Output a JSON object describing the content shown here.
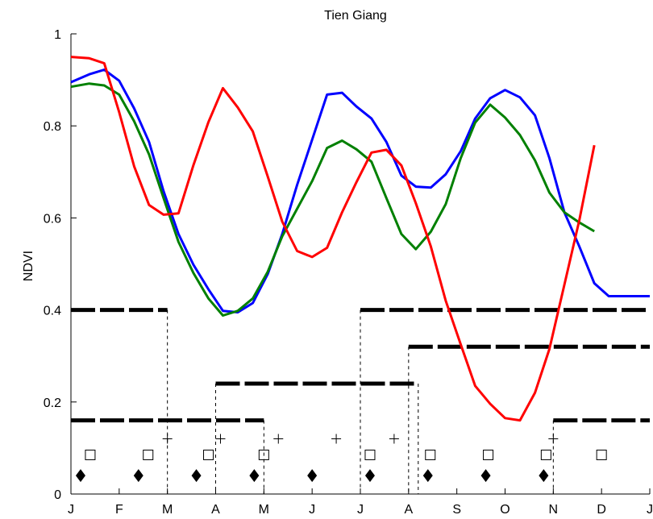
{
  "chart_data": {
    "type": "line",
    "title": "Tien Giang",
    "xlabel": "",
    "ylabel": "NDVI",
    "ylim": [
      0,
      1
    ],
    "xlim": [
      0,
      12
    ],
    "grid": false,
    "x_tick_labels": [
      "J",
      "F",
      "M",
      "A",
      "M",
      "J",
      "J",
      "A",
      "S",
      "O",
      "N",
      "D",
      "J"
    ],
    "y_tick_labels": [
      "0",
      "0.2",
      "0.4",
      "0.6",
      "0.8",
      "1"
    ],
    "y_ticks": [
      0,
      0.2,
      0.4,
      0.6,
      0.8,
      1.0
    ],
    "series": [
      {
        "color": "#0000ff",
        "x": [
          0,
          0.38,
          0.69,
          1.0,
          1.31,
          1.62,
          1.92,
          2.23,
          2.54,
          2.85,
          3.15,
          3.46,
          3.77,
          4.08,
          4.38,
          4.69,
          5.0,
          5.31,
          5.62,
          5.92,
          6.23,
          6.54,
          6.85,
          7.15,
          7.46,
          7.77,
          8.08,
          8.38,
          8.69,
          9.0,
          9.31,
          9.62,
          9.92,
          10.23,
          10.54,
          10.85,
          11.15,
          11.46,
          11.77,
          12.08,
          12.5
        ],
        "y": [
          0.895,
          0.912,
          0.922,
          0.898,
          0.838,
          0.765,
          0.658,
          0.565,
          0.498,
          0.445,
          0.398,
          0.395,
          0.415,
          0.478,
          0.565,
          0.672,
          0.77,
          0.868,
          0.872,
          0.842,
          0.816,
          0.765,
          0.692,
          0.668,
          0.666,
          0.695,
          0.745,
          0.816,
          0.86,
          0.878,
          0.862,
          0.823,
          0.73,
          0.612,
          0.538,
          0.458,
          0.43,
          0.43,
          0.43,
          0.43,
          0.43
        ]
      },
      {
        "color": "#008000",
        "x": [
          0,
          0.38,
          0.69,
          1.0,
          1.31,
          1.62,
          1.92,
          2.23,
          2.54,
          2.85,
          3.15,
          3.46,
          3.77,
          4.08,
          4.38,
          4.69,
          5.0,
          5.31,
          5.62,
          5.92,
          6.23,
          6.54,
          6.85,
          7.15,
          7.46,
          7.77,
          8.08,
          8.38,
          8.69,
          9.0,
          9.31,
          9.62,
          9.92,
          10.23,
          10.54,
          10.85
        ],
        "y": [
          0.885,
          0.892,
          0.888,
          0.868,
          0.81,
          0.738,
          0.643,
          0.548,
          0.48,
          0.425,
          0.388,
          0.398,
          0.425,
          0.483,
          0.56,
          0.62,
          0.68,
          0.752,
          0.768,
          0.749,
          0.722,
          0.643,
          0.565,
          0.532,
          0.57,
          0.63,
          0.73,
          0.807,
          0.846,
          0.818,
          0.78,
          0.725,
          0.655,
          0.612,
          0.59,
          0.571
        ]
      },
      {
        "color": "#ff0000",
        "x": [
          0,
          0.38,
          0.69,
          1.0,
          1.31,
          1.62,
          1.92,
          2.23,
          2.54,
          2.85,
          3.15,
          3.46,
          3.77,
          4.08,
          4.38,
          4.69,
          5.0,
          5.31,
          5.62,
          5.92,
          6.23,
          6.54,
          6.85,
          7.15,
          7.46,
          7.77,
          8.08,
          8.38,
          8.69,
          9.0,
          9.31,
          9.62,
          9.92,
          10.23,
          10.54,
          10.85
        ],
        "y": [
          0.95,
          0.947,
          0.936,
          0.83,
          0.712,
          0.628,
          0.607,
          0.61,
          0.715,
          0.808,
          0.882,
          0.84,
          0.788,
          0.69,
          0.592,
          0.528,
          0.515,
          0.535,
          0.612,
          0.678,
          0.742,
          0.748,
          0.714,
          0.632,
          0.538,
          0.42,
          0.325,
          0.235,
          0.196,
          0.165,
          0.16,
          0.22,
          0.315,
          0.455,
          0.595,
          0.758
        ]
      }
    ],
    "annotations": {
      "dashed_bars": [
        {
          "y": 0.4,
          "x_start": 0.0,
          "x_end": 2.0
        },
        {
          "y": 0.16,
          "x_start": 0.0,
          "x_end": 4.0
        },
        {
          "y": 0.24,
          "x_start": 3.0,
          "x_end": 7.2
        },
        {
          "y": 0.4,
          "x_start": 6.0,
          "x_end": 12.0
        },
        {
          "y": 0.32,
          "x_start": 7.0,
          "x_end": 12.0
        },
        {
          "y": 0.16,
          "x_start": 10.0,
          "x_end": 12.0
        }
      ],
      "vertical_dashed_lines": [
        {
          "x": 2.0,
          "y_top": 0.4
        },
        {
          "x": 3.0,
          "y_top": 0.24
        },
        {
          "x": 4.0,
          "y_top": 0.16
        },
        {
          "x": 6.0,
          "y_top": 0.4
        },
        {
          "x": 7.0,
          "y_top": 0.32
        },
        {
          "x": 7.2,
          "y_top": 0.24
        },
        {
          "x": 10.0,
          "y_top": 0.16
        }
      ],
      "plus_markers": [
        {
          "x": 2.0,
          "y": 0.12
        },
        {
          "x": 3.1,
          "y": 0.12
        },
        {
          "x": 4.3,
          "y": 0.12
        },
        {
          "x": 5.5,
          "y": 0.12
        },
        {
          "x": 6.7,
          "y": 0.12
        },
        {
          "x": 10.0,
          "y": 0.12
        }
      ],
      "square_markers": [
        {
          "x": 0.4,
          "y": 0.085
        },
        {
          "x": 1.6,
          "y": 0.085
        },
        {
          "x": 2.85,
          "y": 0.085
        },
        {
          "x": 4.0,
          "y": 0.085
        },
        {
          "x": 6.2,
          "y": 0.085
        },
        {
          "x": 7.45,
          "y": 0.085
        },
        {
          "x": 8.65,
          "y": 0.085
        },
        {
          "x": 9.85,
          "y": 0.085
        },
        {
          "x": 11.0,
          "y": 0.085
        }
      ],
      "diamond_markers": [
        {
          "x": 0.2,
          "y": 0.04
        },
        {
          "x": 1.4,
          "y": 0.04
        },
        {
          "x": 2.6,
          "y": 0.04
        },
        {
          "x": 3.8,
          "y": 0.04
        },
        {
          "x": 5.0,
          "y": 0.04
        },
        {
          "x": 6.2,
          "y": 0.04
        },
        {
          "x": 7.4,
          "y": 0.04
        },
        {
          "x": 8.6,
          "y": 0.04
        },
        {
          "x": 9.8,
          "y": 0.04
        }
      ]
    }
  }
}
